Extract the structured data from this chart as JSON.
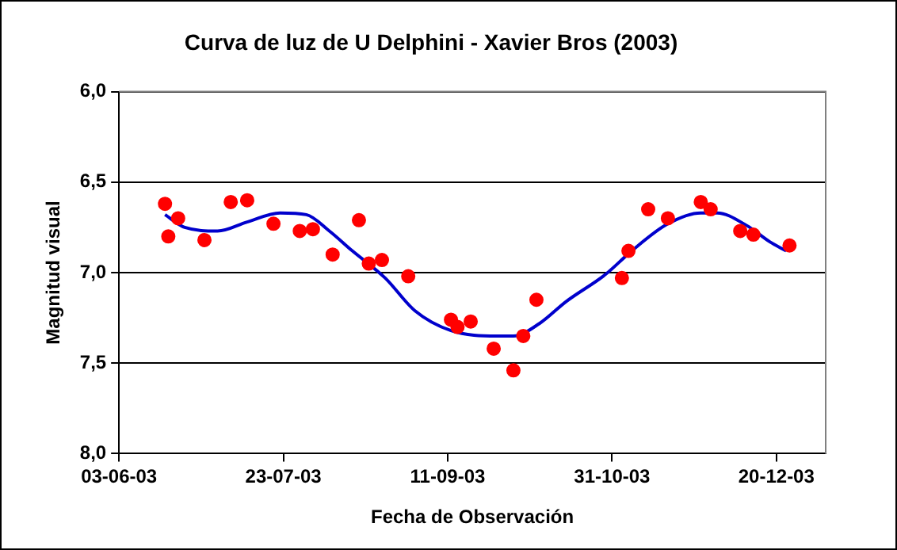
{
  "chart_data": {
    "type": "scatter",
    "title": "Curva de luz de U Delphini - Xavier Bros (2003)",
    "xlabel": "Fecha de Observación",
    "ylabel": "Magnitud visual",
    "xlim": [
      "2003-06-03",
      "2004-01-04"
    ],
    "xticks": [
      {
        "value": "2003-06-03",
        "label": "03-06-03"
      },
      {
        "value": "2003-07-23",
        "label": "23-07-03"
      },
      {
        "value": "2003-09-11",
        "label": "11-09-03"
      },
      {
        "value": "2003-10-31",
        "label": "31-10-03"
      },
      {
        "value": "2003-12-20",
        "label": "20-12-03"
      }
    ],
    "ylim": [
      8,
      6
    ],
    "yticks": [
      {
        "value": 6,
        "label": "6,0"
      },
      {
        "value": 6.5,
        "label": "6,5"
      },
      {
        "value": 7,
        "label": "7,0"
      },
      {
        "value": 7.5,
        "label": "7,5"
      },
      {
        "value": 8,
        "label": "8,0"
      }
    ],
    "grid": "y",
    "legend": false,
    "series": [
      {
        "marker": "circle",
        "color": "#ff0000",
        "x": [
          "2003-06-17",
          "2003-06-18",
          "2003-06-21",
          "2003-06-29",
          "2003-07-07",
          "2003-07-12",
          "2003-07-20",
          "2003-07-28",
          "2003-08-01",
          "2003-08-07",
          "2003-08-15",
          "2003-08-18",
          "2003-08-22",
          "2003-08-30",
          "2003-09-12",
          "2003-09-14",
          "2003-09-18",
          "2003-09-25",
          "2003-10-01",
          "2003-10-04",
          "2003-10-08",
          "2003-11-03",
          "2003-11-05",
          "2003-11-11",
          "2003-11-17",
          "2003-11-27",
          "2003-11-30",
          "2003-12-09",
          "2003-12-13",
          "2003-12-24"
        ],
        "values": [
          6.62,
          6.8,
          6.7,
          6.82,
          6.61,
          6.6,
          6.73,
          6.77,
          6.76,
          6.9,
          6.71,
          6.95,
          6.93,
          7.02,
          7.26,
          7.3,
          7.27,
          7.42,
          7.54,
          7.35,
          7.15,
          7.03,
          6.88,
          6.65,
          6.7,
          6.61,
          6.65,
          6.77,
          6.79,
          6.85
        ]
      },
      {
        "type": "line",
        "marker": "none",
        "line_style": "solid",
        "color": "#0000cc",
        "x": [
          "2003-06-17",
          "2003-06-23",
          "2003-07-03",
          "2003-07-12",
          "2003-07-22",
          "2003-07-30",
          "2003-08-06",
          "2003-08-13",
          "2003-08-23",
          "2003-09-01",
          "2003-09-12",
          "2003-09-26",
          "2003-10-01",
          "2003-10-09",
          "2003-10-17",
          "2003-10-29",
          "2003-11-06",
          "2003-11-17",
          "2003-11-27",
          "2003-12-02",
          "2003-12-11",
          "2003-12-18",
          "2003-12-23"
        ],
        "values": [
          6.68,
          6.75,
          6.77,
          6.72,
          6.67,
          6.68,
          6.77,
          6.88,
          7.03,
          7.21,
          7.32,
          7.35,
          7.35,
          7.28,
          7.16,
          7.01,
          6.88,
          6.73,
          6.67,
          6.67,
          6.74,
          6.83,
          6.88
        ]
      }
    ]
  }
}
